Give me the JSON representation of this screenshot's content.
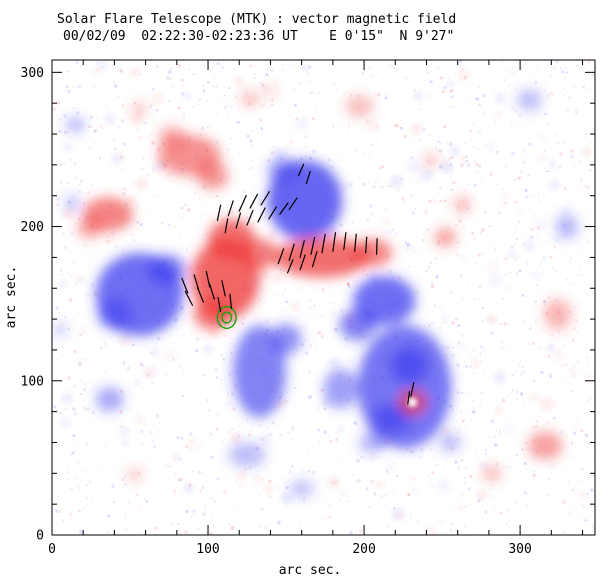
{
  "chart_data": {
    "type": "heatmap",
    "description": "Solar vector magnetogram map: red blobs = positive magnetic polarity, blue blobs = negative polarity, short black segments = transverse field vectors, green = contour",
    "title": "Solar Flare Telescope (MTK) : vector magnetic field",
    "subtitle": "00/02/09  02:22:30-02:23:36 UT    E 0'15\"  N 9'27\"",
    "xlabel": "arc sec.",
    "ylabel": "arc sec.",
    "xlim": [
      0,
      348
    ],
    "ylim": [
      0,
      308
    ],
    "xticks": [
      0,
      100,
      200,
      300
    ],
    "yticks": [
      0,
      100,
      200,
      300
    ],
    "minor_tick_step": 20,
    "colors": {
      "positive": "#ee3333",
      "negative": "#3333ee",
      "contour": "#00aa00",
      "vector": "#000000",
      "axes": "#000000",
      "background": "#ffffff"
    },
    "blob_format": [
      "x_arcsec",
      "y_arcsec",
      "rx",
      "ry",
      "polarity(P=positive/red,N=negative/blue)",
      "intensity_0_to_1"
    ],
    "blobs": [
      [
        56,
        156,
        28,
        27,
        "N",
        0.8
      ],
      [
        74,
        172,
        12,
        10,
        "N",
        0.6
      ],
      [
        40,
        143,
        11,
        10,
        "N",
        0.45
      ],
      [
        162,
        217,
        24,
        26,
        "N",
        0.85
      ],
      [
        148,
        237,
        10,
        8,
        "N",
        0.45
      ],
      [
        213,
        152,
        20,
        16,
        "N",
        0.8
      ],
      [
        196,
        136,
        12,
        10,
        "N",
        0.65
      ],
      [
        133,
        106,
        17,
        30,
        "N",
        0.65
      ],
      [
        150,
        127,
        10,
        10,
        "N",
        0.55
      ],
      [
        226,
        96,
        30,
        40,
        "N",
        0.75
      ],
      [
        229,
        110,
        12,
        12,
        "N",
        0.6
      ],
      [
        217,
        75,
        12,
        10,
        "N",
        0.55
      ],
      [
        37,
        88,
        9,
        8,
        "N",
        0.4
      ],
      [
        125,
        52,
        12,
        8,
        "N",
        0.25
      ],
      [
        160,
        30,
        8,
        6,
        "N",
        0.2
      ],
      [
        330,
        200,
        7,
        8,
        "N",
        0.3
      ],
      [
        306,
        282,
        8,
        7,
        "N",
        0.25
      ],
      [
        15,
        266,
        6,
        5,
        "N",
        0.3
      ],
      [
        13,
        215,
        5,
        5,
        "N",
        0.25
      ],
      [
        5,
        133,
        4,
        4,
        "N",
        0.25
      ],
      [
        185,
        95,
        11,
        13,
        "N",
        0.45
      ],
      [
        205,
        60,
        8,
        7,
        "N",
        0.3
      ],
      [
        255,
        60,
        7,
        6,
        "N",
        0.25
      ],
      [
        36,
        208,
        16,
        11,
        "P",
        0.65
      ],
      [
        24,
        199,
        8,
        7,
        "P",
        0.4
      ],
      [
        88,
        246,
        20,
        13,
        "P",
        0.55
      ],
      [
        77,
        258,
        9,
        7,
        "P",
        0.35
      ],
      [
        103,
        233,
        10,
        9,
        "P",
        0.5
      ],
      [
        111,
        166,
        22,
        26,
        "P",
        0.85
      ],
      [
        115,
        192,
        15,
        13,
        "P",
        0.8
      ],
      [
        103,
        143,
        12,
        10,
        "P",
        0.75
      ],
      [
        133,
        182,
        12,
        10,
        "P",
        0.7
      ],
      [
        173,
        180,
        30,
        13,
        "P",
        0.8
      ],
      [
        205,
        183,
        13,
        9,
        "P",
        0.65
      ],
      [
        231,
        86,
        9,
        8,
        "P",
        0.8
      ],
      [
        252,
        193,
        7,
        6,
        "P",
        0.45
      ],
      [
        263,
        214,
        5,
        5,
        "P",
        0.35
      ],
      [
        324,
        143,
        9,
        10,
        "P",
        0.3
      ],
      [
        316,
        58,
        11,
        9,
        "P",
        0.45
      ],
      [
        282,
        40,
        6,
        5,
        "P",
        0.3
      ],
      [
        197,
        278,
        9,
        7,
        "P",
        0.25
      ],
      [
        127,
        283,
        6,
        5,
        "P",
        0.25
      ],
      [
        56,
        276,
        5,
        4,
        "P",
        0.25
      ],
      [
        243,
        243,
        5,
        4,
        "P",
        0.25
      ],
      [
        53,
        39,
        5,
        4,
        "P",
        0.2
      ],
      [
        140,
        288,
        4,
        3,
        "P",
        0.2
      ]
    ],
    "white_holes": [
      [
        231,
        86,
        3.2
      ]
    ],
    "contour_format": [
      "x_arcsec",
      "y_arcsec",
      "rx",
      "ry"
    ],
    "contours": [
      [
        112,
        141,
        6,
        7
      ],
      [
        112,
        141,
        3,
        3.5
      ]
    ],
    "vector_format": [
      "x_arcsec",
      "y_arcsec",
      "angle_deg_ccw_from_east",
      "length_arcsec"
    ],
    "vectors": [
      [
        106,
        204,
        78,
        10
      ],
      [
        113,
        207,
        72,
        10
      ],
      [
        120,
        210,
        66,
        11
      ],
      [
        127,
        212,
        62,
        10
      ],
      [
        134,
        214,
        58,
        10
      ],
      [
        111,
        196,
        80,
        9
      ],
      [
        118,
        199,
        74,
        10
      ],
      [
        125,
        201,
        68,
        10
      ],
      [
        132,
        203,
        63,
        10
      ],
      [
        139,
        205,
        58,
        9
      ],
      [
        146,
        208,
        54,
        9
      ],
      [
        152,
        211,
        56,
        9
      ],
      [
        145,
        176,
        70,
        10
      ],
      [
        152,
        178,
        73,
        11
      ],
      [
        159,
        180,
        76,
        11
      ],
      [
        166,
        182,
        78,
        11
      ],
      [
        173,
        183,
        80,
        12
      ],
      [
        180,
        184,
        82,
        12
      ],
      [
        187,
        185,
        83,
        11
      ],
      [
        194,
        184,
        85,
        11
      ],
      [
        201,
        183,
        86,
        10
      ],
      [
        208,
        182,
        88,
        10
      ],
      [
        151,
        170,
        68,
        9
      ],
      [
        159,
        172,
        71,
        10
      ],
      [
        167,
        174,
        74,
        10
      ],
      [
        87,
        157,
        112,
        10
      ],
      [
        94,
        159,
        107,
        10
      ],
      [
        101,
        161,
        102,
        10
      ],
      [
        90,
        149,
        117,
        10
      ],
      [
        97,
        151,
        112,
        10
      ],
      [
        104,
        153,
        107,
        10
      ],
      [
        111,
        155,
        102,
        10
      ],
      [
        108,
        145,
        100,
        9
      ],
      [
        115,
        147,
        96,
        9
      ],
      [
        230,
        90,
        78,
        9
      ],
      [
        228,
        85,
        82,
        8
      ],
      [
        163,
        228,
        72,
        8
      ],
      [
        158,
        233,
        66,
        8
      ]
    ]
  }
}
